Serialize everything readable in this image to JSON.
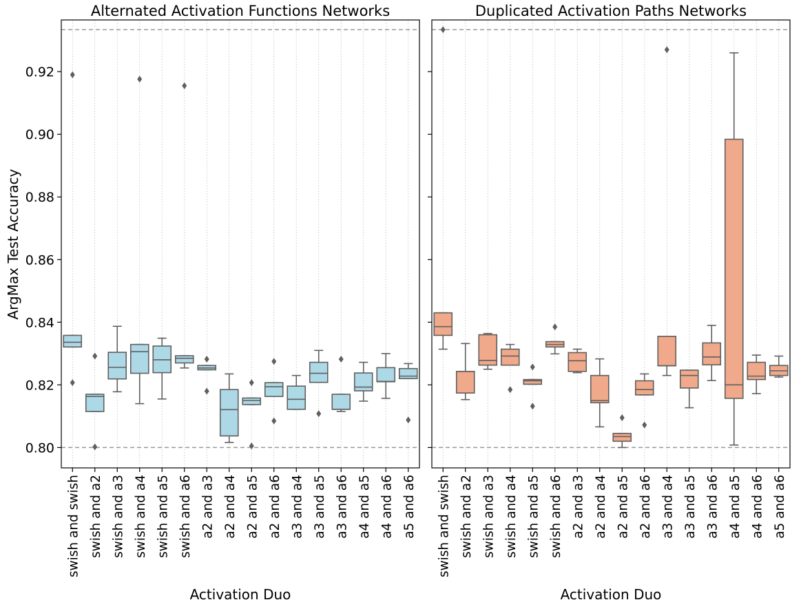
{
  "chart_data": [
    {
      "type": "box",
      "title": "Alternated Activation Functions Networks",
      "xlabel": "Activation Duo",
      "ylabel": "ArgMax Test Accuracy",
      "ylim": [
        0.7935,
        0.9365
      ],
      "yticks": [
        0.8,
        0.82,
        0.84,
        0.86,
        0.88,
        0.9,
        0.92
      ],
      "reference_lines": [
        0.8,
        0.9334
      ],
      "grid": "vertical dotted",
      "box_color": "#add8e6",
      "categories": [
        "swish and swish",
        "swish and a2",
        "swish and a3",
        "swish and a4",
        "swish and a5",
        "swish and a6",
        "a2 and a3",
        "a2 and a4",
        "a2 and a5",
        "a2 and a6",
        "a3 and a4",
        "a3 and a5",
        "a3 and a6",
        "a4 and a5",
        "a4 and a6",
        "a5 and a6"
      ],
      "boxes": [
        {
          "q1": 0.8321,
          "median": 0.8336,
          "q3": 0.8358,
          "whisker_low": 0.8321,
          "whisker_high": 0.8358,
          "outliers": [
            0.8207,
            0.919
          ]
        },
        {
          "q1": 0.8115,
          "median": 0.8163,
          "q3": 0.817,
          "whisker_low": 0.8115,
          "whisker_high": 0.817,
          "outliers": [
            0.8002,
            0.8292
          ]
        },
        {
          "q1": 0.8219,
          "median": 0.8256,
          "q3": 0.8304,
          "whisker_low": 0.8178,
          "whisker_high": 0.8387,
          "outliers": []
        },
        {
          "q1": 0.8237,
          "median": 0.8306,
          "q3": 0.8329,
          "whisker_low": 0.814,
          "whisker_high": 0.8329,
          "outliers": [
            0.9176
          ]
        },
        {
          "q1": 0.8239,
          "median": 0.828,
          "q3": 0.8324,
          "whisker_low": 0.8155,
          "whisker_high": 0.8349,
          "outliers": []
        },
        {
          "q1": 0.827,
          "median": 0.8285,
          "q3": 0.8293,
          "whisker_low": 0.8254,
          "whisker_high": 0.8293,
          "outliers": [
            0.9155
          ]
        },
        {
          "q1": 0.8248,
          "median": 0.8254,
          "q3": 0.8262,
          "whisker_low": 0.8248,
          "whisker_high": 0.8262,
          "outliers": [
            0.818,
            0.8282
          ]
        },
        {
          "q1": 0.8037,
          "median": 0.8121,
          "q3": 0.8185,
          "whisker_low": 0.8016,
          "whisker_high": 0.8235,
          "outliers": []
        },
        {
          "q1": 0.8137,
          "median": 0.815,
          "q3": 0.8158,
          "whisker_low": 0.8137,
          "whisker_high": 0.8158,
          "outliers": [
            0.8005,
            0.8207
          ]
        },
        {
          "q1": 0.8163,
          "median": 0.8194,
          "q3": 0.8207,
          "whisker_low": 0.8163,
          "whisker_high": 0.8207,
          "outliers": [
            0.8085,
            0.8275
          ]
        },
        {
          "q1": 0.8122,
          "median": 0.8154,
          "q3": 0.8196,
          "whisker_low": 0.8122,
          "whisker_high": 0.823,
          "outliers": []
        },
        {
          "q1": 0.8208,
          "median": 0.8237,
          "q3": 0.8272,
          "whisker_low": 0.8208,
          "whisker_high": 0.831,
          "outliers": [
            0.8108
          ]
        },
        {
          "q1": 0.8122,
          "median": 0.8122,
          "q3": 0.817,
          "whisker_low": 0.8115,
          "whisker_high": 0.817,
          "outliers": [
            0.8282
          ]
        },
        {
          "q1": 0.8181,
          "median": 0.8193,
          "q3": 0.8238,
          "whisker_low": 0.8148,
          "whisker_high": 0.8272,
          "outliers": []
        },
        {
          "q1": 0.821,
          "median": 0.8211,
          "q3": 0.8255,
          "whisker_low": 0.8157,
          "whisker_high": 0.83,
          "outliers": []
        },
        {
          "q1": 0.822,
          "median": 0.8228,
          "q3": 0.8252,
          "whisker_low": 0.822,
          "whisker_high": 0.8268,
          "outliers": [
            0.8088
          ]
        }
      ]
    },
    {
      "type": "box",
      "title": "Duplicated Activation Paths Networks",
      "xlabel": "Activation Duo",
      "ylabel": "",
      "ylim": [
        0.7935,
        0.9365
      ],
      "yticks": [
        0.8,
        0.82,
        0.84,
        0.86,
        0.88,
        0.9,
        0.92
      ],
      "reference_lines": [
        0.8,
        0.9334
      ],
      "grid": "vertical dotted",
      "box_color": "#f0a98a",
      "categories": [
        "swish and swish",
        "swish and a2",
        "swish and a3",
        "swish and a4",
        "swish and a5",
        "swish and a6",
        "a2 and a3",
        "a2 and a4",
        "a2 and a5",
        "a2 and a6",
        "a3 and a4",
        "a3 and a5",
        "a3 and a6",
        "a4 and a5",
        "a4 and a6",
        "a5 and a6"
      ],
      "boxes": [
        {
          "q1": 0.8358,
          "median": 0.8386,
          "q3": 0.843,
          "whisker_low": 0.8314,
          "whisker_high": 0.843,
          "outliers": [
            0.9334
          ]
        },
        {
          "q1": 0.8174,
          "median": 0.8243,
          "q3": 0.8243,
          "whisker_low": 0.8153,
          "whisker_high": 0.8332,
          "outliers": []
        },
        {
          "q1": 0.8263,
          "median": 0.8278,
          "q3": 0.836,
          "whisker_low": 0.825,
          "whisker_high": 0.8364,
          "outliers": []
        },
        {
          "q1": 0.8263,
          "median": 0.8292,
          "q3": 0.8314,
          "whisker_low": 0.8263,
          "whisker_high": 0.8329,
          "outliers": [
            0.8185
          ]
        },
        {
          "q1": 0.8202,
          "median": 0.8213,
          "q3": 0.8217,
          "whisker_low": 0.8202,
          "whisker_high": 0.8217,
          "outliers": [
            0.8132,
            0.8257
          ]
        },
        {
          "q1": 0.8321,
          "median": 0.8329,
          "q3": 0.8338,
          "whisker_low": 0.8299,
          "whisker_high": 0.8338,
          "outliers": [
            0.8385
          ]
        },
        {
          "q1": 0.8243,
          "median": 0.8277,
          "q3": 0.8303,
          "whisker_low": 0.8239,
          "whisker_high": 0.8314,
          "outliers": []
        },
        {
          "q1": 0.8143,
          "median": 0.815,
          "q3": 0.823,
          "whisker_low": 0.8066,
          "whisker_high": 0.8283,
          "outliers": []
        },
        {
          "q1": 0.802,
          "median": 0.8035,
          "q3": 0.8045,
          "whisker_low": 0.8,
          "whisker_high": 0.8045,
          "outliers": [
            0.8095
          ]
        },
        {
          "q1": 0.8168,
          "median": 0.8185,
          "q3": 0.8213,
          "whisker_low": 0.8168,
          "whisker_high": 0.8235,
          "outliers": [
            0.8072
          ]
        },
        {
          "q1": 0.8261,
          "median": 0.8261,
          "q3": 0.8355,
          "whisker_low": 0.823,
          "whisker_high": 0.8355,
          "outliers": [
            0.927
          ]
        },
        {
          "q1": 0.819,
          "median": 0.823,
          "q3": 0.8247,
          "whisker_low": 0.8127,
          "whisker_high": 0.8247,
          "outliers": []
        },
        {
          "q1": 0.8264,
          "median": 0.8289,
          "q3": 0.8334,
          "whisker_low": 0.8214,
          "whisker_high": 0.839,
          "outliers": []
        },
        {
          "q1": 0.8157,
          "median": 0.82,
          "q3": 0.8984,
          "whisker_low": 0.8008,
          "whisker_high": 0.926,
          "outliers": []
        },
        {
          "q1": 0.8217,
          "median": 0.8228,
          "q3": 0.8272,
          "whisker_low": 0.8172,
          "whisker_high": 0.8295,
          "outliers": []
        },
        {
          "q1": 0.823,
          "median": 0.8245,
          "q3": 0.8262,
          "whisker_low": 0.8225,
          "whisker_high": 0.8292,
          "outliers": []
        }
      ]
    }
  ]
}
